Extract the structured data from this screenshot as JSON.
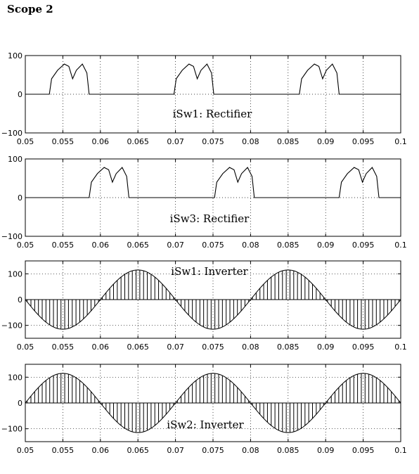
{
  "page": {
    "title": "Scope 2"
  },
  "chart_data": [
    {
      "type": "line",
      "label": "iSw1: Rectifier",
      "xlim": [
        0.05,
        0.1
      ],
      "ylim": [
        -100,
        100
      ],
      "yticks": [
        100,
        0,
        -100
      ],
      "ytick_labels": [
        "100",
        "0",
        "−100"
      ],
      "xticks": [
        0.05,
        0.055,
        0.06,
        0.065,
        0.07,
        0.075,
        0.08,
        0.085,
        0.09,
        0.095,
        0.1
      ],
      "xtick_labels": [
        "0.05",
        "0.055",
        "0.06",
        "0.065",
        "0.07",
        "0.075",
        "0.08",
        "0.085",
        "0.09",
        "0.095",
        "0.1"
      ],
      "grid": true,
      "series": [
        {
          "x": [
            0.05,
            0.0532,
            0.0535,
            0.0543,
            0.0552,
            0.0558,
            0.0563,
            0.0568,
            0.0576,
            0.0582,
            0.0585,
            0.0598,
            0.0698,
            0.0701,
            0.0709,
            0.0718,
            0.0724,
            0.0729,
            0.0734,
            0.0742,
            0.0748,
            0.0751,
            0.0765,
            0.0865,
            0.0868,
            0.0876,
            0.0885,
            0.0891,
            0.0896,
            0.0901,
            0.0909,
            0.0915,
            0.0918,
            0.1
          ],
          "y": [
            0,
            0,
            40,
            62,
            78,
            72,
            40,
            62,
            78,
            55,
            0,
            0,
            0,
            40,
            62,
            78,
            72,
            40,
            62,
            78,
            55,
            0,
            0,
            0,
            40,
            62,
            78,
            72,
            40,
            62,
            78,
            55,
            0,
            0
          ]
        }
      ]
    },
    {
      "type": "line",
      "label": "iSw3: Rectifier",
      "xlim": [
        0.05,
        0.1
      ],
      "ylim": [
        -100,
        100
      ],
      "yticks": [
        100,
        0,
        -100
      ],
      "ytick_labels": [
        "100",
        "0",
        "−100"
      ],
      "xticks": [
        0.05,
        0.055,
        0.06,
        0.065,
        0.07,
        0.075,
        0.08,
        0.085,
        0.09,
        0.095,
        0.1
      ],
      "xtick_labels": [
        "0.05",
        "0.055",
        "0.06",
        "0.065",
        "0.07",
        "0.075",
        "0.08",
        "0.085",
        "0.09",
        "0.095",
        "0.1"
      ],
      "grid": true,
      "series": [
        {
          "x": [
            0.05,
            0.0585,
            0.0588,
            0.0596,
            0.0605,
            0.0611,
            0.0616,
            0.0621,
            0.0629,
            0.0635,
            0.0638,
            0.0752,
            0.0755,
            0.0763,
            0.0772,
            0.0778,
            0.0783,
            0.0788,
            0.0796,
            0.0802,
            0.0805,
            0.0918,
            0.0921,
            0.0929,
            0.0938,
            0.0944,
            0.0949,
            0.0954,
            0.0962,
            0.0968,
            0.0971,
            0.1
          ],
          "y": [
            0,
            0,
            40,
            62,
            78,
            72,
            40,
            62,
            78,
            55,
            0,
            0,
            40,
            62,
            78,
            72,
            40,
            62,
            78,
            55,
            0,
            0,
            40,
            62,
            78,
            72,
            40,
            62,
            78,
            55,
            0,
            0
          ]
        }
      ]
    },
    {
      "type": "line",
      "label": "iSw1: Inverter",
      "description": "PWM-chopped sinusoidal current: vertical pulses from 0 to a sinusoidal envelope (~115 peak, period 0.02 s, negative half-cycle starting at 0.05)",
      "xlim": [
        0.05,
        0.1
      ],
      "ylim": [
        -150,
        150
      ],
      "yticks": [
        100,
        0,
        -100
      ],
      "ytick_labels": [
        "100",
        "0",
        "−100"
      ],
      "xticks": [
        0.05,
        0.055,
        0.06,
        0.065,
        0.07,
        0.075,
        0.08,
        0.085,
        0.09,
        0.095,
        0.1
      ],
      "xtick_labels": [
        "0.05",
        "0.055",
        "0.06",
        "0.065",
        "0.07",
        "0.075",
        "0.08",
        "0.085",
        "0.09",
        "0.095",
        "0.1"
      ],
      "grid": true,
      "envelope": {
        "amplitude": 115,
        "period": 0.02,
        "phase_start": 0.05,
        "sign": -1,
        "pulse_count": 100
      }
    },
    {
      "type": "line",
      "label": "iSw2: Inverter",
      "description": "PWM-chopped sinusoidal current: vertical pulses from 0 to a sinusoidal envelope (~115 peak, period 0.02 s, positive half-cycle starting at 0.05)",
      "xlim": [
        0.05,
        0.1
      ],
      "ylim": [
        -150,
        150
      ],
      "yticks": [
        100,
        0,
        -100
      ],
      "ytick_labels": [
        "100",
        "0",
        "−100"
      ],
      "xticks": [
        0.05,
        0.055,
        0.06,
        0.065,
        0.07,
        0.075,
        0.08,
        0.085,
        0.09,
        0.095,
        0.1
      ],
      "xtick_labels": [
        "0.05",
        "0.055",
        "0.06",
        "0.065",
        "0.07",
        "0.075",
        "0.08",
        "0.085",
        "0.09",
        "0.095",
        "0.1"
      ],
      "grid": true,
      "envelope": {
        "amplitude": 115,
        "period": 0.02,
        "phase_start": 0.05,
        "sign": 1,
        "pulse_count": 100
      }
    }
  ]
}
